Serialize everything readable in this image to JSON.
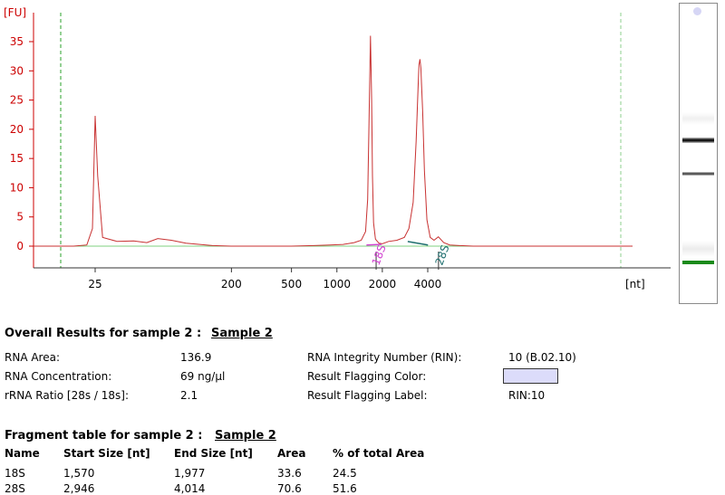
{
  "chart_data": {
    "type": "line",
    "ylabel": "[FU]",
    "xlabel": "[nt]",
    "yticks": [
      0,
      5,
      10,
      15,
      20,
      25,
      30,
      35
    ],
    "ylim": [
      -3.5,
      39
    ],
    "xticks": [
      "25",
      "200",
      "500",
      "1000",
      "2000",
      "4000"
    ],
    "xscale": "log",
    "x": [
      10,
      18,
      22,
      24,
      25,
      26,
      28,
      35,
      45,
      55,
      65,
      80,
      100,
      150,
      200,
      300,
      500,
      700,
      900,
      1100,
      1300,
      1450,
      1550,
      1600,
      1640,
      1670,
      1700,
      1720,
      1750,
      1800,
      1900,
      2000,
      2200,
      2500,
      2800,
      3000,
      3200,
      3350,
      3450,
      3500,
      3550,
      3600,
      3700,
      3800,
      3950,
      4150,
      4400,
      4700,
      5100,
      5600,
      6500,
      8000,
      10000,
      13000,
      18000
    ],
    "series": [
      {
        "values": [
          0.0,
          0.0,
          0.2,
          3.0,
          22.3,
          12.0,
          1.5,
          0.8,
          0.9,
          0.6,
          1.3,
          1.0,
          0.5,
          0.1,
          0.0,
          0.0,
          0.0,
          0.1,
          0.2,
          0.3,
          0.6,
          1.0,
          2.5,
          8.0,
          24.0,
          36.0,
          25.0,
          12.0,
          4.0,
          1.2,
          0.5,
          0.4,
          0.8,
          1.0,
          1.5,
          3.0,
          7.5,
          18.0,
          27.0,
          31.0,
          32.0,
          30.5,
          23.0,
          13.0,
          4.5,
          1.5,
          1.0,
          1.6,
          0.6,
          0.2,
          0.1,
          0.0,
          0.0,
          0.0,
          0.0
        ]
      }
    ],
    "peaks": [
      "18S",
      "28S"
    ]
  },
  "overall": {
    "title": "Overall Results for sample 2  :",
    "sample_link": "Sample 2",
    "rna_area_label": "RNA Area:",
    "rna_area_value": "136.9",
    "rna_conc_label": "RNA Concentration:",
    "rna_conc_value": "69 ng/µl",
    "ratio_label": "rRNA Ratio [28s / 18s]:",
    "ratio_value": "2.1",
    "rin_label": "RNA Integrity Number (RIN):",
    "rin_value": "10  (B.02.10)",
    "flag_color_label": "Result Flagging Color:",
    "flag_color": "#dcdcfa",
    "flag_label_label": "Result Flagging Label:",
    "flag_label_value": "RIN:10"
  },
  "fragment": {
    "title": "Fragment table for sample 2  :",
    "sample_link": "Sample 2",
    "headers": [
      "Name",
      "Start Size [nt]",
      "End Size [nt]",
      "Area",
      "% of total Area"
    ],
    "rows": [
      [
        "18S",
        "1,570",
        "1,977",
        "33.6",
        "24.5"
      ],
      [
        "28S",
        "2,946",
        "4,014",
        "70.6",
        "51.6"
      ]
    ]
  },
  "colors": {
    "trace": "#c83232",
    "axis": "#cc0000",
    "baseline": "#7fd07f",
    "marker_line": "#2aa02a",
    "peak_18s": "#d040d0",
    "peak_28s": "#1f6f6f"
  }
}
